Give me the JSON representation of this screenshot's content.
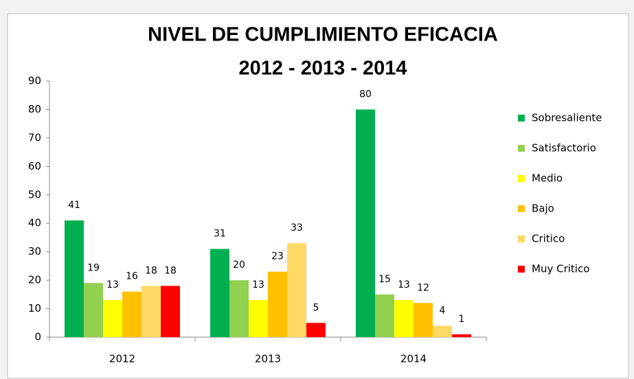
{
  "chart_data": {
    "type": "bar",
    "title": "NIVEL DE CUMPLIMIENTO  EFICACIA",
    "subtitle": "2012 - 2013 - 2014",
    "categories": [
      "2012",
      "2013",
      "2014"
    ],
    "series": [
      {
        "name": "Sobresaliente",
        "color": "#00b050",
        "values": [
          41,
          31,
          80
        ]
      },
      {
        "name": "Satisfactorio",
        "color": "#92d050",
        "values": [
          19,
          20,
          15
        ]
      },
      {
        "name": "Medio",
        "color": "#ffff00",
        "values": [
          13,
          13,
          13
        ]
      },
      {
        "name": "Bajo",
        "color": "#ffc000",
        "values": [
          16,
          23,
          12
        ]
      },
      {
        "name": "Critico",
        "color": "#ffd966",
        "values": [
          18,
          33,
          4
        ]
      },
      {
        "name": "Muy Critico",
        "color": "#ff0000",
        "values": [
          18,
          5,
          1
        ]
      }
    ],
    "ylim": [
      0,
      90
    ],
    "yticks": [
      0,
      10,
      20,
      30,
      40,
      50,
      60,
      70,
      80,
      90
    ],
    "grid": false,
    "legend": "right"
  }
}
